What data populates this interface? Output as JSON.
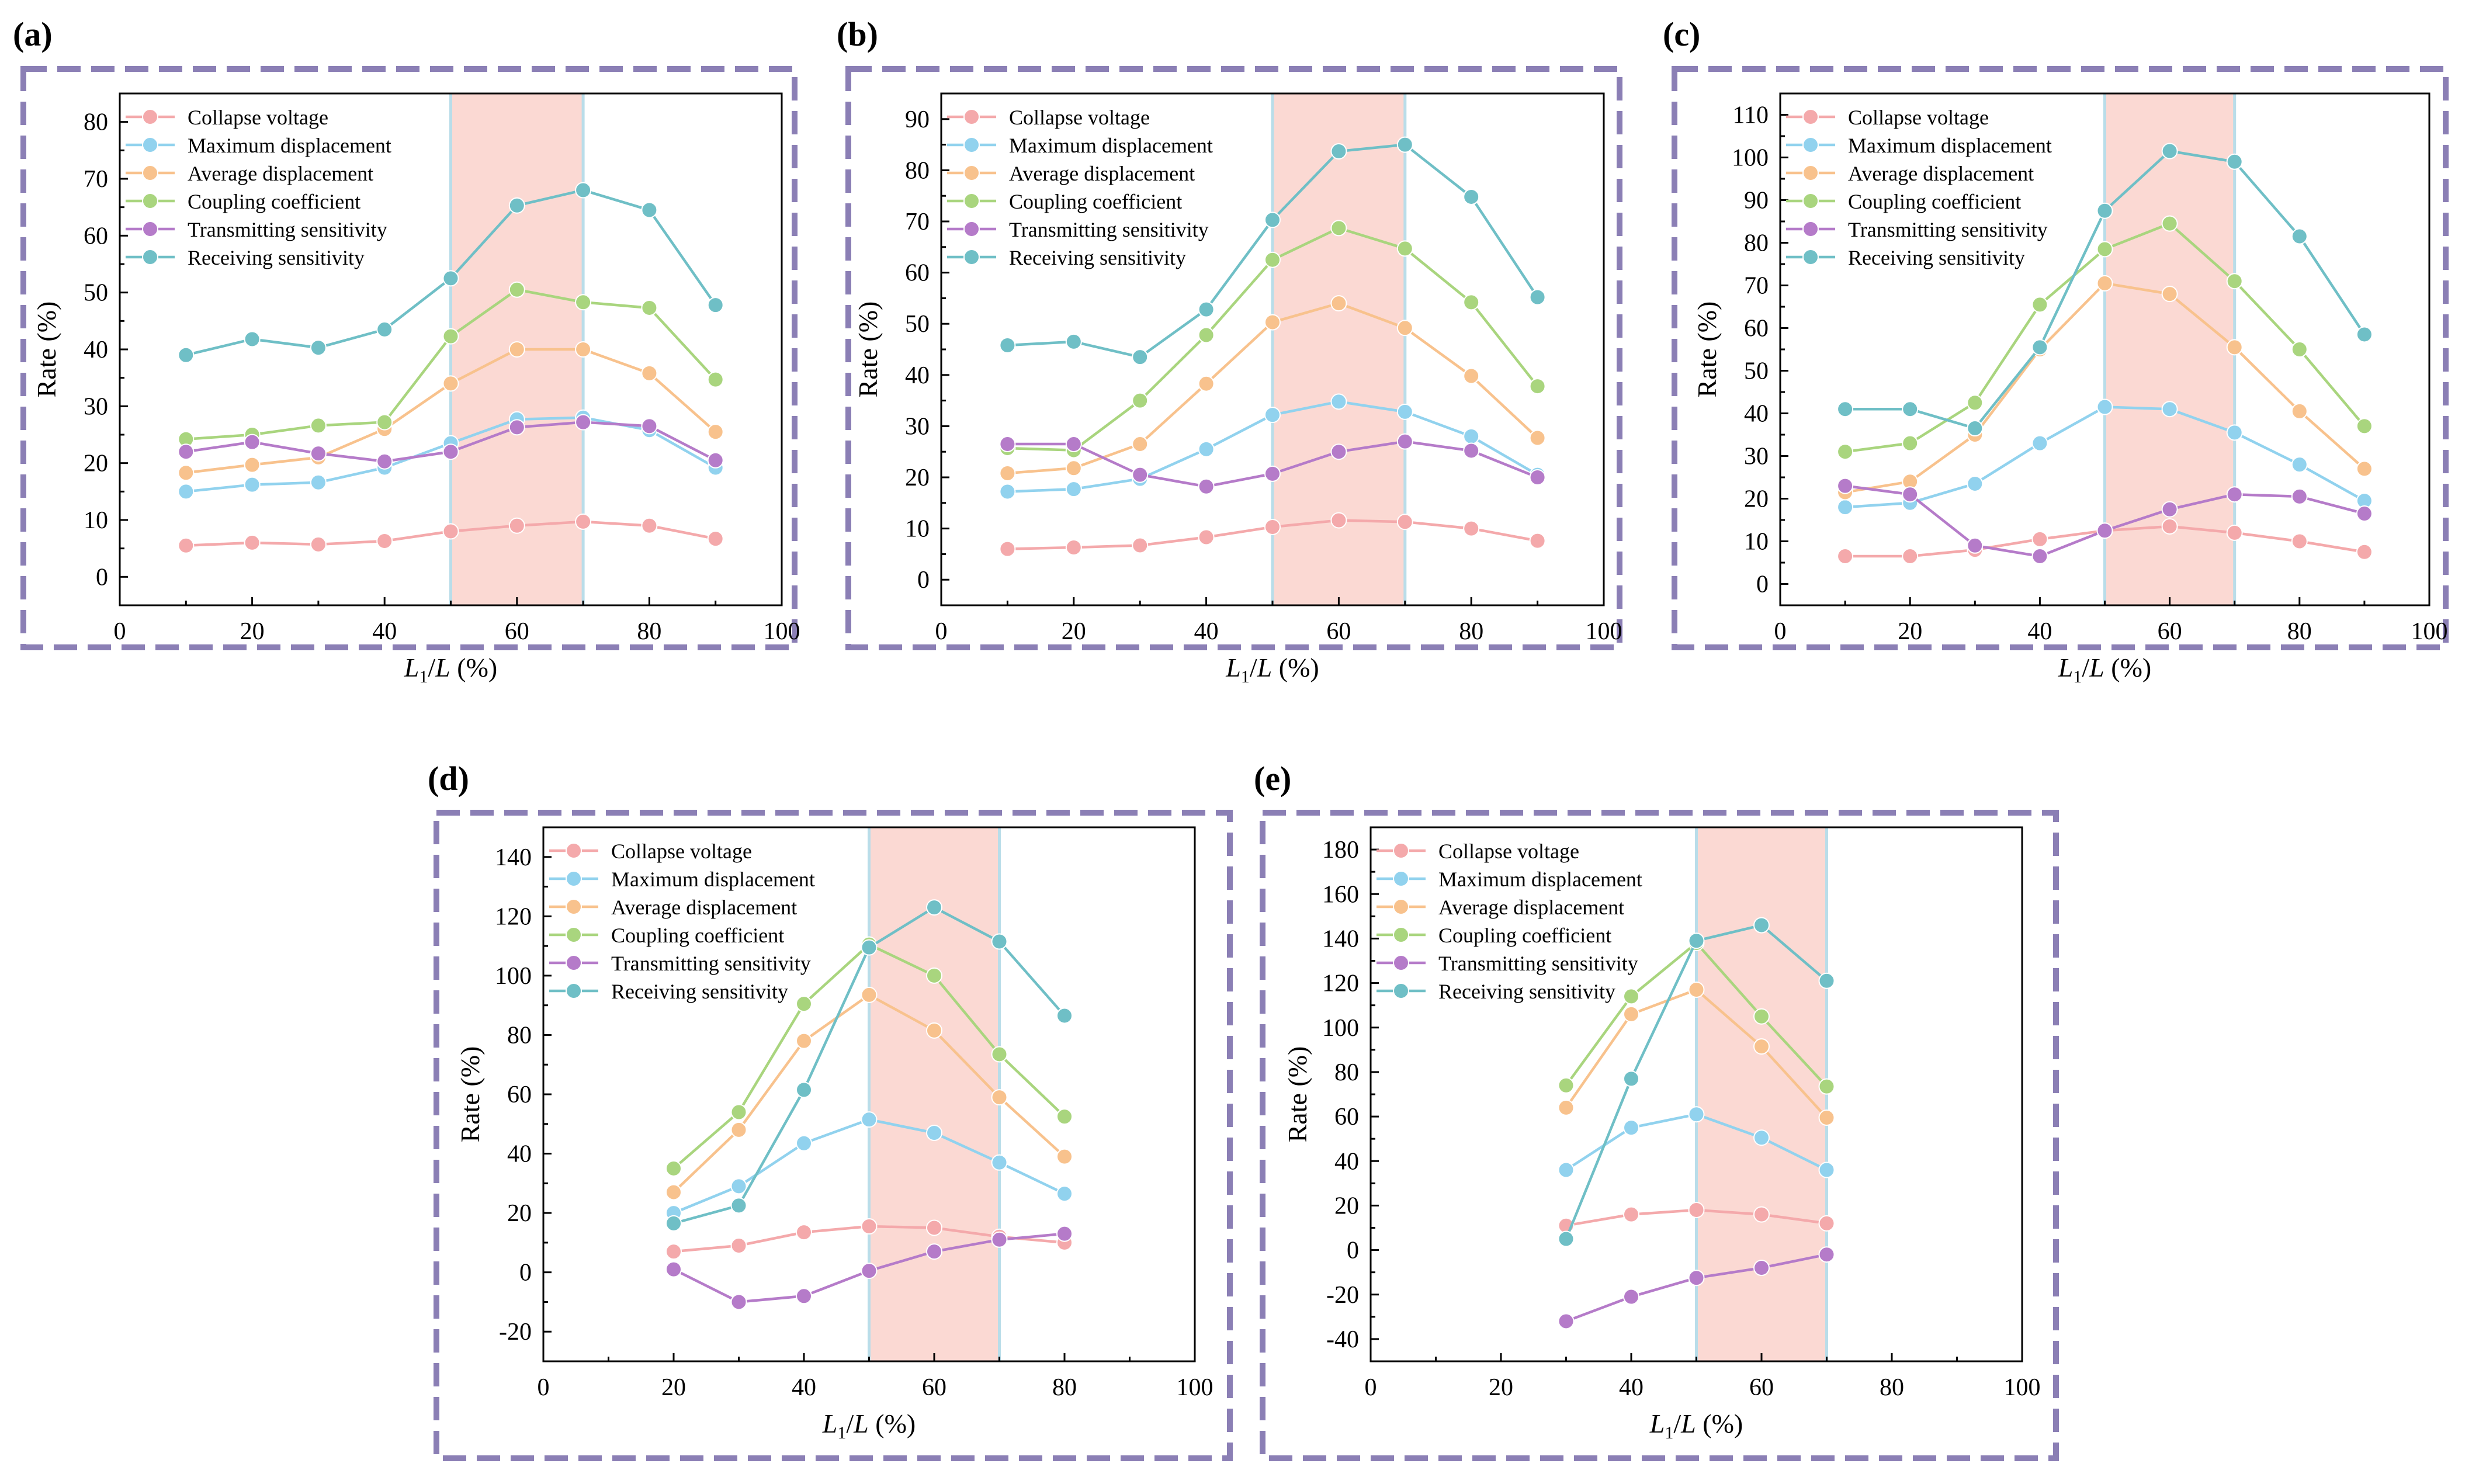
{
  "figure": {
    "colors": {
      "frame": "#8b7fb5",
      "highlight": "#fbd9d3",
      "highlight_edge": "#b9dde9",
      "series": {
        "Collapse voltage": "#f4a9ab",
        "Maximum displacement": "#91d2ee",
        "Average displacement": "#f8c28d",
        "Coupling coefficient": "#a9d57e",
        "Transmitting sensitivity": "#b57bc9",
        "Receiving sensitivity": "#6fbfc6"
      }
    }
  },
  "chart_data": [
    {
      "panel": "(a)",
      "type": "line",
      "xlabel_italic": "L",
      "xlabel_sub": "1",
      "xlabel_tail": "/L (%)",
      "ylabel": "Rate (%)",
      "xlim": [
        0,
        100
      ],
      "ylim": [
        -5,
        85
      ],
      "xticks": [
        0,
        20,
        40,
        60,
        80,
        100
      ],
      "yticks": [
        0,
        10,
        20,
        30,
        40,
        50,
        60,
        70,
        80
      ],
      "highlight": [
        50,
        70
      ],
      "legend": "top-left",
      "x": [
        10,
        20,
        30,
        40,
        50,
        60,
        70,
        80,
        90
      ],
      "series": [
        {
          "name": "Collapse voltage",
          "values": [
            5.5,
            6,
            5.7,
            6.3,
            8,
            9,
            9.7,
            9,
            6.7
          ]
        },
        {
          "name": "Maximum displacement",
          "values": [
            15,
            16.2,
            16.6,
            19.2,
            23.5,
            27.7,
            28,
            25.8,
            19.2
          ]
        },
        {
          "name": "Average displacement",
          "values": [
            18.3,
            19.7,
            21,
            26,
            34,
            40,
            40,
            35.8,
            25.5
          ]
        },
        {
          "name": "Coupling coefficient",
          "values": [
            24.2,
            25,
            26.6,
            27.2,
            42.3,
            50.5,
            48.3,
            47.3,
            34.7
          ]
        },
        {
          "name": "Transmitting sensitivity",
          "values": [
            22,
            23.7,
            21.7,
            20.3,
            22,
            26.3,
            27.2,
            26.5,
            20.5
          ]
        },
        {
          "name": "Receiving sensitivity",
          "values": [
            39,
            41.8,
            40.3,
            43.5,
            52.5,
            65.3,
            68,
            64.5,
            47.8
          ]
        }
      ]
    },
    {
      "panel": "(b)",
      "type": "line",
      "xlabel_italic": "L",
      "xlabel_sub": "1",
      "xlabel_tail": "/L (%)",
      "ylabel": "Rate (%)",
      "xlim": [
        0,
        100
      ],
      "ylim": [
        -5,
        95
      ],
      "xticks": [
        0,
        20,
        40,
        60,
        80,
        100
      ],
      "yticks": [
        0,
        10,
        20,
        30,
        40,
        50,
        60,
        70,
        80,
        90
      ],
      "highlight": [
        50,
        70
      ],
      "legend": "top-left",
      "x": [
        10,
        20,
        30,
        40,
        50,
        60,
        70,
        80,
        90
      ],
      "series": [
        {
          "name": "Collapse voltage",
          "values": [
            6,
            6.3,
            6.7,
            8.3,
            10.3,
            11.6,
            11.3,
            10,
            7.6
          ]
        },
        {
          "name": "Maximum displacement",
          "values": [
            17.2,
            17.7,
            19.7,
            25.5,
            32.2,
            34.8,
            32.8,
            28,
            20.5
          ]
        },
        {
          "name": "Average displacement",
          "values": [
            20.8,
            21.8,
            26.5,
            38.3,
            50.3,
            54,
            49.2,
            39.8,
            27.7
          ]
        },
        {
          "name": "Coupling coefficient",
          "values": [
            25.7,
            25.3,
            35,
            47.8,
            62.5,
            68.7,
            64.7,
            54.2,
            37.8
          ]
        },
        {
          "name": "Transmitting sensitivity",
          "values": [
            26.5,
            26.5,
            20.5,
            18.2,
            20.7,
            25,
            27,
            25.2,
            20
          ]
        },
        {
          "name": "Receiving sensitivity",
          "values": [
            45.8,
            46.5,
            43.5,
            52.8,
            70.3,
            83.7,
            85,
            74.8,
            55.2
          ]
        }
      ]
    },
    {
      "panel": "(c)",
      "type": "line",
      "xlabel_italic": "L",
      "xlabel_sub": "1",
      "xlabel_tail": "/L (%)",
      "ylabel": "Rate (%)",
      "xlim": [
        0,
        100
      ],
      "ylim": [
        -5,
        115
      ],
      "xticks": [
        0,
        20,
        40,
        60,
        80,
        100
      ],
      "yticks": [
        0,
        10,
        20,
        30,
        40,
        50,
        60,
        70,
        80,
        90,
        100,
        110
      ],
      "highlight": [
        50,
        70
      ],
      "legend": "top-left",
      "x": [
        10,
        20,
        30,
        40,
        50,
        60,
        70,
        80,
        90
      ],
      "series": [
        {
          "name": "Collapse voltage",
          "values": [
            6.5,
            6.5,
            8,
            10.5,
            12.5,
            13.5,
            12,
            10,
            7.5
          ]
        },
        {
          "name": "Maximum displacement",
          "values": [
            18,
            19,
            23.5,
            33,
            41.5,
            41,
            35.5,
            28,
            19.5
          ]
        },
        {
          "name": "Average displacement",
          "values": [
            21.5,
            24,
            35,
            55,
            70.5,
            68,
            55.5,
            40.5,
            27
          ]
        },
        {
          "name": "Coupling coefficient",
          "values": [
            31,
            33,
            42.5,
            65.5,
            78.5,
            84.5,
            71,
            55,
            37
          ]
        },
        {
          "name": "Transmitting sensitivity",
          "values": [
            23,
            21,
            9,
            6.5,
            12.5,
            17.5,
            21,
            20.5,
            16.5
          ]
        },
        {
          "name": "Receiving sensitivity",
          "values": [
            41,
            41,
            36.5,
            55.5,
            87.5,
            101.5,
            99,
            81.5,
            58.5
          ]
        }
      ]
    },
    {
      "panel": "(d)",
      "type": "line",
      "xlabel_italic": "L",
      "xlabel_sub": "1",
      "xlabel_tail": "/L (%)",
      "ylabel": "Rate (%)",
      "xlim": [
        0,
        100
      ],
      "ylim": [
        -30,
        150
      ],
      "xticks": [
        0,
        20,
        40,
        60,
        80,
        100
      ],
      "yticks": [
        -20,
        0,
        20,
        40,
        60,
        80,
        100,
        120,
        140
      ],
      "highlight": [
        50,
        70
      ],
      "legend": "top-left",
      "x": [
        20,
        30,
        40,
        50,
        60,
        70,
        80
      ],
      "series": [
        {
          "name": "Collapse voltage",
          "values": [
            7,
            9,
            13.5,
            15.5,
            15,
            12,
            10
          ]
        },
        {
          "name": "Maximum displacement",
          "values": [
            20,
            29,
            43.5,
            51.5,
            47,
            37,
            26.5
          ]
        },
        {
          "name": "Average displacement",
          "values": [
            27,
            48,
            78,
            93.5,
            81.5,
            59,
            39
          ]
        },
        {
          "name": "Coupling coefficient",
          "values": [
            35,
            54,
            90.5,
            110.5,
            100,
            73.5,
            52.5
          ]
        },
        {
          "name": "Transmitting sensitivity",
          "values": [
            1,
            -10,
            -8,
            0.5,
            7,
            11,
            13
          ]
        },
        {
          "name": "Receiving sensitivity",
          "values": [
            16.5,
            22.5,
            61.5,
            109.5,
            123,
            111.5,
            86.5
          ]
        }
      ]
    },
    {
      "panel": "(e)",
      "type": "line",
      "xlabel_italic": "L",
      "xlabel_sub": "1",
      "xlabel_tail": "/L (%)",
      "ylabel": "Rate (%)",
      "xlim": [
        0,
        100
      ],
      "ylim": [
        -50,
        190
      ],
      "xticks": [
        0,
        20,
        40,
        60,
        80,
        100
      ],
      "yticks": [
        -40,
        -20,
        0,
        20,
        40,
        60,
        80,
        100,
        120,
        140,
        160,
        180
      ],
      "highlight": [
        50,
        70
      ],
      "legend": "top-left",
      "x": [
        30,
        40,
        50,
        60,
        70
      ],
      "series": [
        {
          "name": "Collapse voltage",
          "values": [
            11,
            16,
            18,
            16,
            12
          ]
        },
        {
          "name": "Maximum displacement",
          "values": [
            36,
            55,
            61,
            50.5,
            36
          ]
        },
        {
          "name": "Average displacement",
          "values": [
            64,
            106,
            117,
            91.5,
            59.5
          ]
        },
        {
          "name": "Coupling coefficient",
          "values": [
            74,
            114,
            138,
            105,
            73.5
          ]
        },
        {
          "name": "Transmitting sensitivity",
          "values": [
            -32,
            -21,
            -12.5,
            -8,
            -2
          ]
        },
        {
          "name": "Receiving sensitivity",
          "values": [
            5,
            77,
            139,
            146,
            121
          ]
        }
      ]
    }
  ]
}
